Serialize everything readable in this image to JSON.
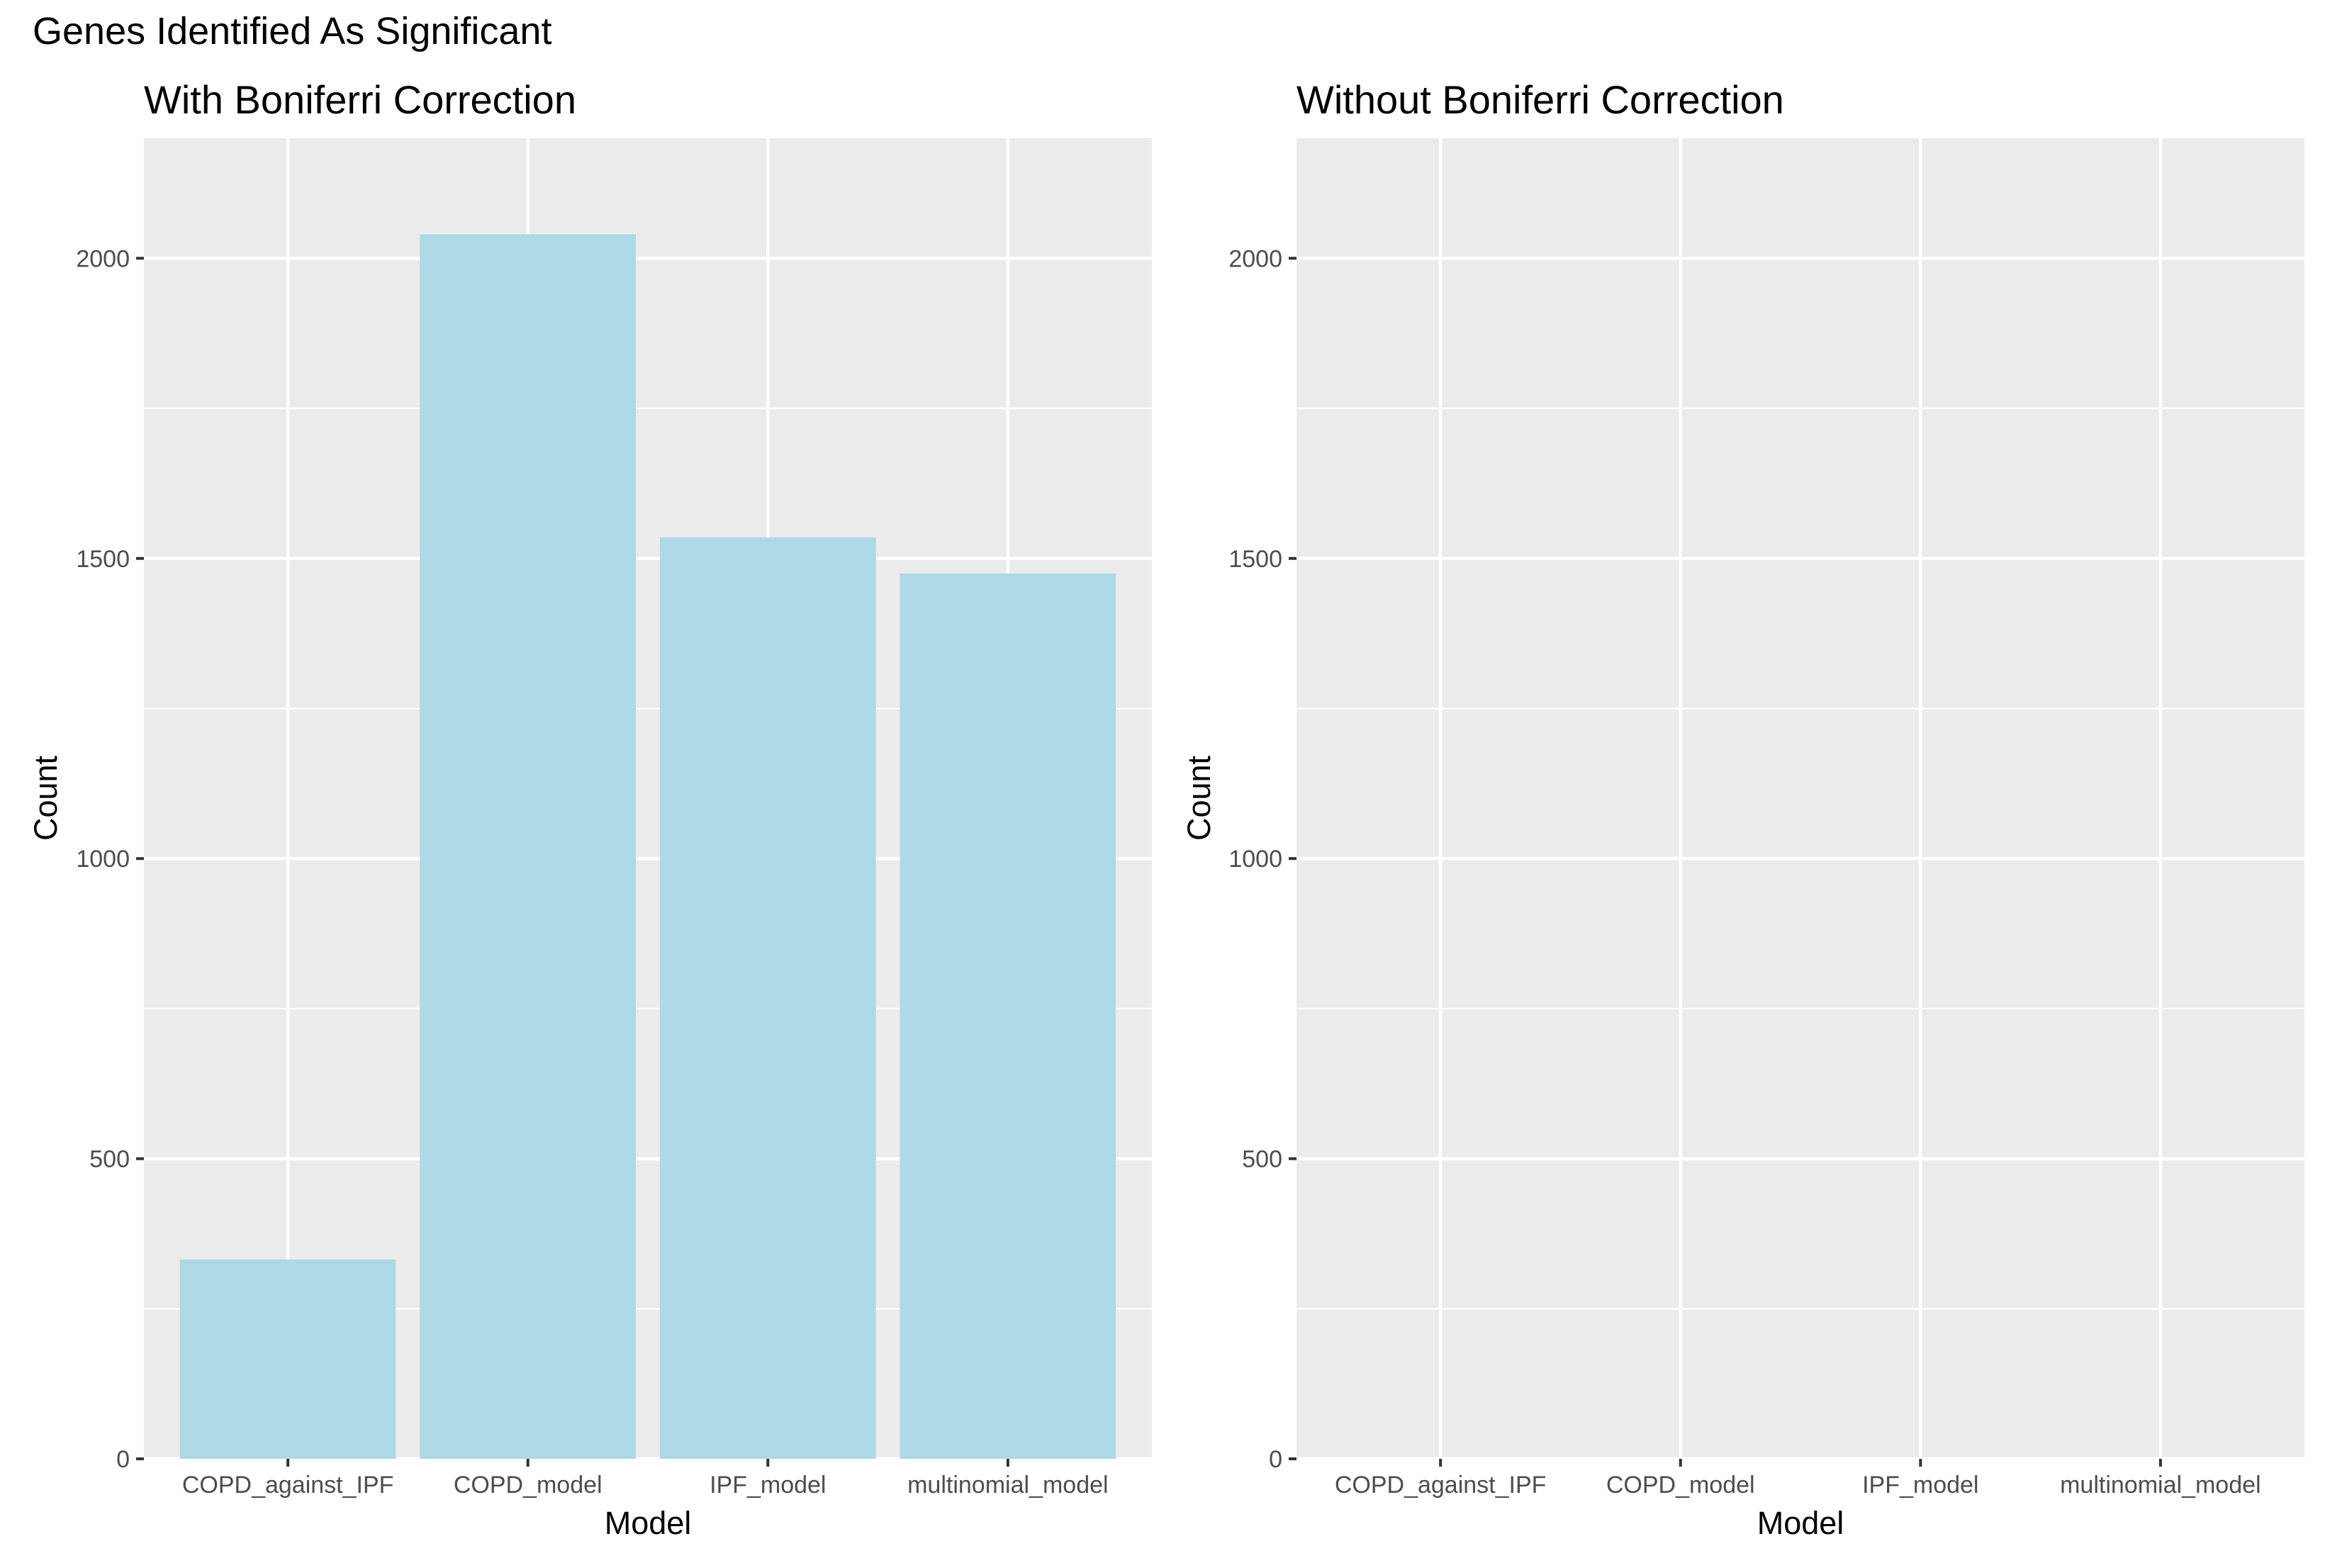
{
  "title": "Genes Identified As Significant",
  "chart_data": [
    {
      "type": "bar",
      "title": "With Boniferri Correction",
      "xlabel": "Model",
      "ylabel": "Count",
      "categories": [
        "COPD_against_IPF",
        "COPD_model",
        "IPF_model",
        "multinomial_model"
      ],
      "values": [
        332,
        2040,
        1535,
        1475
      ],
      "ylim": [
        0,
        2200
      ],
      "yticks": [
        0,
        500,
        1000,
        1500,
        2000
      ],
      "bar_color": "#ADD8E6",
      "panel_background": "#EBEBEB",
      "grid": true
    },
    {
      "type": "bar",
      "title": "Without Boniferri Correction",
      "xlabel": "Model",
      "ylabel": "Count",
      "categories": [
        "COPD_against_IPF",
        "COPD_model",
        "IPF_model",
        "multinomial_model"
      ],
      "values": [
        0,
        0,
        0,
        0
      ],
      "ylim": [
        0,
        2200
      ],
      "yticks": [
        0,
        500,
        1000,
        1500,
        2000
      ],
      "bar_color": "#ADD8E6",
      "panel_background": "#EBEBEB",
      "grid": true
    }
  ]
}
